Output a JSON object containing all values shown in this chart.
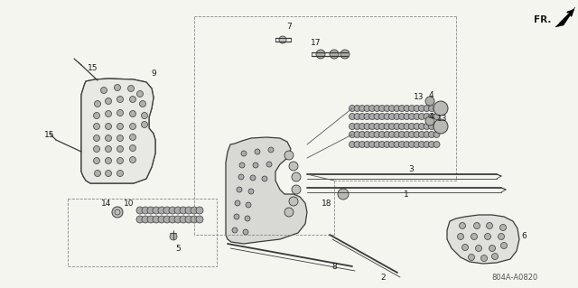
{
  "bg_color": "#f5f5f0",
  "line_color": "#3a3a3a",
  "label_color": "#1a1a1a",
  "diagram_code": "804A-A0820",
  "fr_label": "FR.",
  "figsize": [
    6.4,
    3.19
  ],
  "dpi": 100
}
